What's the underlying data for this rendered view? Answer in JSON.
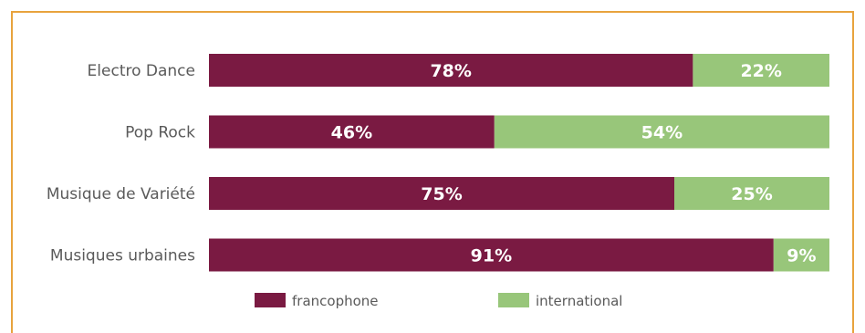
{
  "chart_data": {
    "type": "bar",
    "orientation": "horizontal",
    "stacked": true,
    "categories": [
      "Electro Dance",
      "Pop Rock",
      "Musique de Variété",
      "Musiques urbaines"
    ],
    "series": [
      {
        "name": "francophone",
        "values": [
          78,
          46,
          75,
          91
        ],
        "labels": [
          "78%",
          "46%",
          "75%",
          "91%"
        ],
        "color": "#7a1a42"
      },
      {
        "name": "international",
        "values": [
          22,
          54,
          25,
          9
        ],
        "labels": [
          "22%",
          "54%",
          "25%",
          "9%"
        ],
        "color": "#98c67a"
      }
    ],
    "xlim": [
      0,
      100
    ],
    "grid": false,
    "legend_position": "bottom"
  }
}
